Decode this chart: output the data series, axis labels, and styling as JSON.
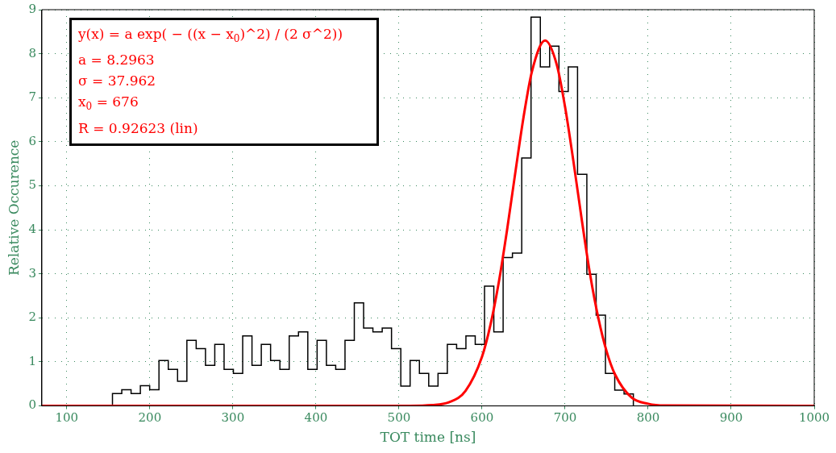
{
  "chart_data": {
    "type": "histogram",
    "xlabel": "TOT time [ns]",
    "ylabel": "Relative Occurence",
    "annotations": [
      "y(x) = a exp( − ((x − x$_{0}$)^2) / (2 σ^2))",
      "a = 8.2963",
      "σ = 37.962",
      "x$_{0}$ = 676",
      "R = 0.92623  (lin)"
    ],
    "bins": [
      155,
      166.2,
      177.4,
      188.6,
      199.8,
      211,
      222.2,
      233.4,
      244.6,
      255.8,
      267,
      278.2,
      289.4,
      300.6,
      311.8,
      323,
      334.2,
      345.4,
      356.6,
      367.8,
      379,
      390.2,
      401.4,
      412.6,
      423.8,
      435,
      446.2,
      457.4,
      468.6,
      479.8,
      491,
      502.2,
      513.4,
      524.6,
      535.8,
      547,
      558.2,
      569.4,
      580.6,
      591.8,
      603,
      614.2,
      625.4,
      636.6,
      647.8,
      659,
      670.2,
      681.4,
      692.6,
      703.8,
      715,
      726.2,
      737.4,
      748.6,
      759.8,
      771,
      782.2
    ],
    "series": [
      {
        "color": "#000000",
        "values": [
          0.28,
          0.37,
          0.28,
          0.46,
          0.37,
          1.03,
          0.83,
          0.56,
          1.49,
          1.3,
          0.92,
          1.4,
          0.83,
          0.74,
          1.59,
          0.92,
          1.4,
          1.03,
          0.83,
          1.59,
          1.68,
          0.83,
          1.49,
          0.92,
          0.83,
          1.49,
          2.34,
          1.77,
          1.68,
          1.77,
          1.3,
          0.45,
          1.03,
          0.74,
          0.45,
          0.74,
          1.4,
          1.3,
          1.59,
          1.4,
          2.72,
          1.68,
          3.37,
          3.47,
          5.63,
          8.83,
          7.7,
          8.17,
          7.14,
          7.7,
          5.26,
          2.99,
          2.06,
          0.74,
          0.36,
          0.27
        ]
      },
      {
        "type": "line",
        "color": "#ff0000",
        "x": [
          70,
          500,
          540,
          560,
          580,
          600,
          610,
          620,
          630,
          640,
          650,
          660,
          676,
          690,
          700,
          710,
          720,
          730,
          740,
          750,
          760,
          780,
          800,
          820,
          1000
        ],
        "values": [
          0,
          0,
          0.02,
          0.08,
          0.34,
          1.12,
          1.83,
          2.79,
          3.98,
          5.29,
          6.56,
          7.59,
          8.3,
          7.75,
          6.79,
          5.56,
          4.24,
          3,
          2,
          1.24,
          0.72,
          0.19,
          0.05,
          0.01,
          0
        ]
      }
    ],
    "xlim": [
      70,
      1000
    ],
    "xticks": [
      100,
      200,
      300,
      400,
      500,
      600,
      700,
      800,
      900,
      1000
    ],
    "ylim": [
      0,
      9
    ],
    "yticks": [
      0,
      1,
      2,
      3,
      4,
      5,
      6,
      7,
      8,
      9
    ],
    "grid": true,
    "legend": false,
    "marker": "none",
    "line_style": "solid"
  }
}
